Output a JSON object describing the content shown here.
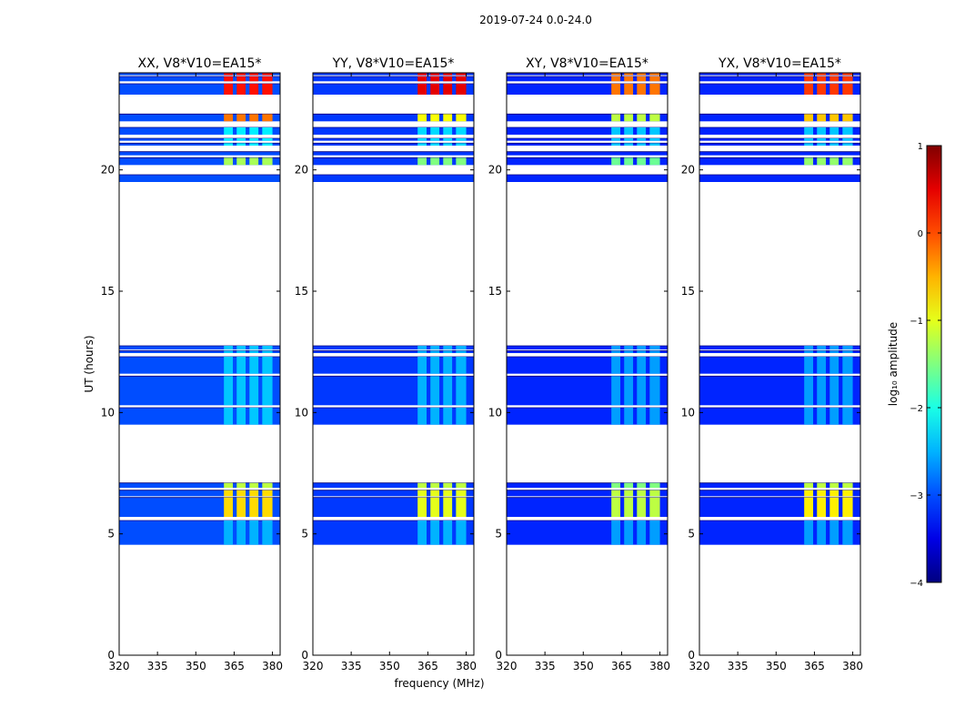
{
  "chart_data": {
    "type": "heatmap",
    "suptitle": "2019-07-24 0.0-24.0",
    "xlabel": "frequency (MHz)",
    "ylabel": "UT (hours)",
    "xlim": [
      320,
      383
    ],
    "ylim": [
      0,
      24
    ],
    "xticks": [
      320,
      335,
      350,
      365,
      380
    ],
    "yticks": [
      0,
      5,
      10,
      15,
      20
    ],
    "colorbar": {
      "label": "log₁₀ amplitude",
      "range": [
        -4,
        1
      ],
      "ticks": [
        1,
        0,
        -1,
        -2,
        -3,
        -4
      ],
      "colormap": "jet"
    },
    "time_blocks_hours": [
      [
        4.55,
        5.55
      ],
      [
        5.7,
        6.5
      ],
      [
        6.55,
        6.8
      ],
      [
        6.9,
        7.1
      ],
      [
        9.5,
        10.2
      ],
      [
        10.3,
        11.5
      ],
      [
        11.6,
        12.3
      ],
      [
        12.45,
        12.55
      ],
      [
        12.6,
        12.75
      ],
      [
        19.5,
        19.8
      ],
      [
        20.2,
        20.5
      ],
      [
        20.6,
        20.75
      ],
      [
        21.0,
        21.1
      ],
      [
        21.2,
        21.3
      ],
      [
        21.45,
        21.75
      ],
      [
        22.0,
        22.3
      ],
      [
        23.1,
        23.55
      ],
      [
        23.65,
        23.85
      ],
      [
        23.9,
        24.0
      ]
    ],
    "rfi_band_mhz": [
      360,
      380
    ],
    "rfi_channels_mhz": [
      [
        361,
        364.5
      ],
      [
        366,
        369.5
      ],
      [
        371,
        374.5
      ],
      [
        376,
        380
      ]
    ],
    "panels": [
      {
        "title": "XX, V8*V10=EA15*",
        "baseline_level": -3.0,
        "rfi_levels": [
          {
            "start": 23.1,
            "end": 24.0,
            "level": 0.3
          },
          {
            "start": 22.0,
            "end": 22.3,
            "level": -0.2
          },
          {
            "start": 21.0,
            "end": 21.75,
            "level": -2.2
          },
          {
            "start": 20.2,
            "end": 20.5,
            "level": -1.3
          },
          {
            "start": 9.5,
            "end": 12.75,
            "level": -2.4
          },
          {
            "start": 6.9,
            "end": 7.1,
            "level": -1.2
          },
          {
            "start": 5.7,
            "end": 6.8,
            "level": -0.7
          },
          {
            "start": 4.55,
            "end": 5.55,
            "level": -2.5
          }
        ]
      },
      {
        "title": "YY, V8*V10=EA15*",
        "baseline_level": -3.1,
        "rfi_levels": [
          {
            "start": 23.1,
            "end": 24.0,
            "level": 0.5
          },
          {
            "start": 22.0,
            "end": 22.3,
            "level": -0.9
          },
          {
            "start": 21.0,
            "end": 21.75,
            "level": -2.3
          },
          {
            "start": 20.2,
            "end": 20.5,
            "level": -1.5
          },
          {
            "start": 9.5,
            "end": 12.75,
            "level": -2.5
          },
          {
            "start": 6.9,
            "end": 7.1,
            "level": -1.2
          },
          {
            "start": 5.7,
            "end": 6.8,
            "level": -1.0
          },
          {
            "start": 4.55,
            "end": 5.55,
            "level": -2.5
          }
        ]
      },
      {
        "title": "XY, V8*V10=EA15*",
        "baseline_level": -3.2,
        "rfi_levels": [
          {
            "start": 23.1,
            "end": 24.0,
            "level": -0.2
          },
          {
            "start": 22.0,
            "end": 22.3,
            "level": -1.2
          },
          {
            "start": 21.0,
            "end": 21.75,
            "level": -2.4
          },
          {
            "start": 20.2,
            "end": 20.5,
            "level": -1.6
          },
          {
            "start": 9.5,
            "end": 12.75,
            "level": -2.6
          },
          {
            "start": 6.9,
            "end": 7.1,
            "level": -1.5
          },
          {
            "start": 5.7,
            "end": 6.8,
            "level": -1.2
          },
          {
            "start": 4.55,
            "end": 5.55,
            "level": -2.6
          }
        ]
      },
      {
        "title": "YX, V8*V10=EA15*",
        "baseline_level": -3.2,
        "rfi_levels": [
          {
            "start": 23.1,
            "end": 24.0,
            "level": 0.1
          },
          {
            "start": 22.0,
            "end": 22.3,
            "level": -0.6
          },
          {
            "start": 21.0,
            "end": 21.75,
            "level": -2.4
          },
          {
            "start": 20.2,
            "end": 20.5,
            "level": -1.4
          },
          {
            "start": 9.5,
            "end": 12.75,
            "level": -2.6
          },
          {
            "start": 6.9,
            "end": 7.1,
            "level": -1.2
          },
          {
            "start": 5.7,
            "end": 6.8,
            "level": -0.8
          },
          {
            "start": 4.55,
            "end": 5.55,
            "level": -2.6
          }
        ]
      }
    ]
  }
}
